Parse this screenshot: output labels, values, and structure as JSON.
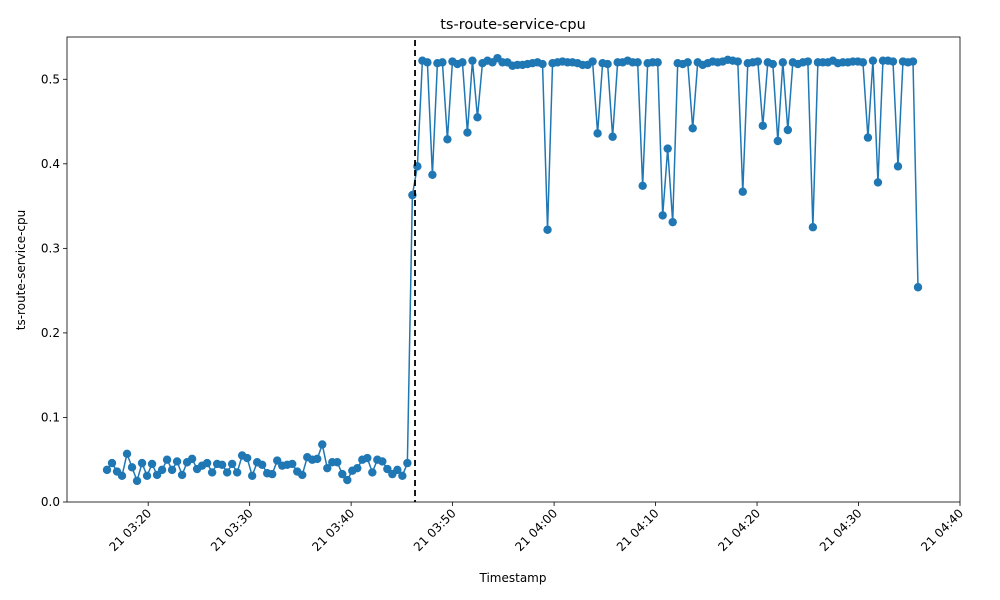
{
  "chart_data": {
    "type": "line",
    "title": "ts-route-service-cpu",
    "xlabel": "Timestamp",
    "ylabel": "ts-route-service-cpu",
    "x_ticks": [
      "21 03:20",
      "21 03:30",
      "21 03:40",
      "21 03:50",
      "21 04:00",
      "21 04:10",
      "21 04:20",
      "21 04:30",
      "21 04:40"
    ],
    "y_ticks": [
      "0.0",
      "0.1",
      "0.2",
      "0.3",
      "0.4",
      "0.5"
    ],
    "x_range": [
      "21 03:12",
      "21 04:40"
    ],
    "ylim": [
      0,
      0.55
    ],
    "grid": false,
    "marker": "circle",
    "line_color": "#1f77b4",
    "threshold": {
      "x": "21 03:46",
      "style": "dashed",
      "color": "#000000"
    },
    "series": [
      {
        "values": [
          0.038,
          0.046,
          0.036,
          0.031,
          0.057,
          0.041,
          0.025,
          0.046,
          0.031,
          0.045,
          0.032,
          0.038,
          0.05,
          0.038,
          0.048,
          0.032,
          0.047,
          0.051,
          0.039,
          0.043,
          0.046,
          0.035,
          0.045,
          0.044,
          0.035,
          0.045,
          0.035,
          0.055,
          0.052,
          0.031,
          0.047,
          0.044,
          0.034,
          0.033,
          0.049,
          0.043,
          0.044,
          0.045,
          0.036,
          0.032,
          0.053,
          0.05,
          0.051,
          0.068,
          0.04,
          0.047,
          0.047,
          0.033,
          0.026,
          0.037,
          0.04,
          0.05,
          0.052,
          0.035,
          0.05,
          0.048,
          0.039,
          0.033,
          0.038,
          0.031,
          0.046,
          0.363,
          0.397,
          0.522,
          0.52,
          0.387,
          0.519,
          0.52,
          0.429,
          0.521,
          0.518,
          0.52,
          0.437,
          0.522,
          0.455,
          0.519,
          0.522,
          0.52,
          0.525,
          0.52,
          0.52,
          0.516,
          0.517,
          0.517,
          0.518,
          0.519,
          0.52,
          0.518,
          0.322,
          0.519,
          0.52,
          0.521,
          0.52,
          0.52,
          0.519,
          0.517,
          0.517,
          0.521,
          0.436,
          0.519,
          0.518,
          0.432,
          0.52,
          0.52,
          0.522,
          0.52,
          0.52,
          0.374,
          0.519,
          0.52,
          0.52,
          0.339,
          0.418,
          0.331,
          0.519,
          0.518,
          0.52,
          0.442,
          0.52,
          0.517,
          0.519,
          0.521,
          0.52,
          0.521,
          0.523,
          0.522,
          0.521,
          0.367,
          0.519,
          0.52,
          0.521,
          0.445,
          0.52,
          0.518,
          0.427,
          0.52,
          0.44,
          0.52,
          0.518,
          0.52,
          0.521,
          0.325,
          0.52,
          0.52,
          0.52,
          0.522,
          0.519,
          0.52,
          0.52,
          0.521,
          0.521,
          0.52,
          0.431,
          0.522,
          0.378,
          0.522,
          0.522,
          0.521,
          0.397,
          0.521,
          0.52,
          0.521,
          0.254
        ]
      }
    ]
  }
}
